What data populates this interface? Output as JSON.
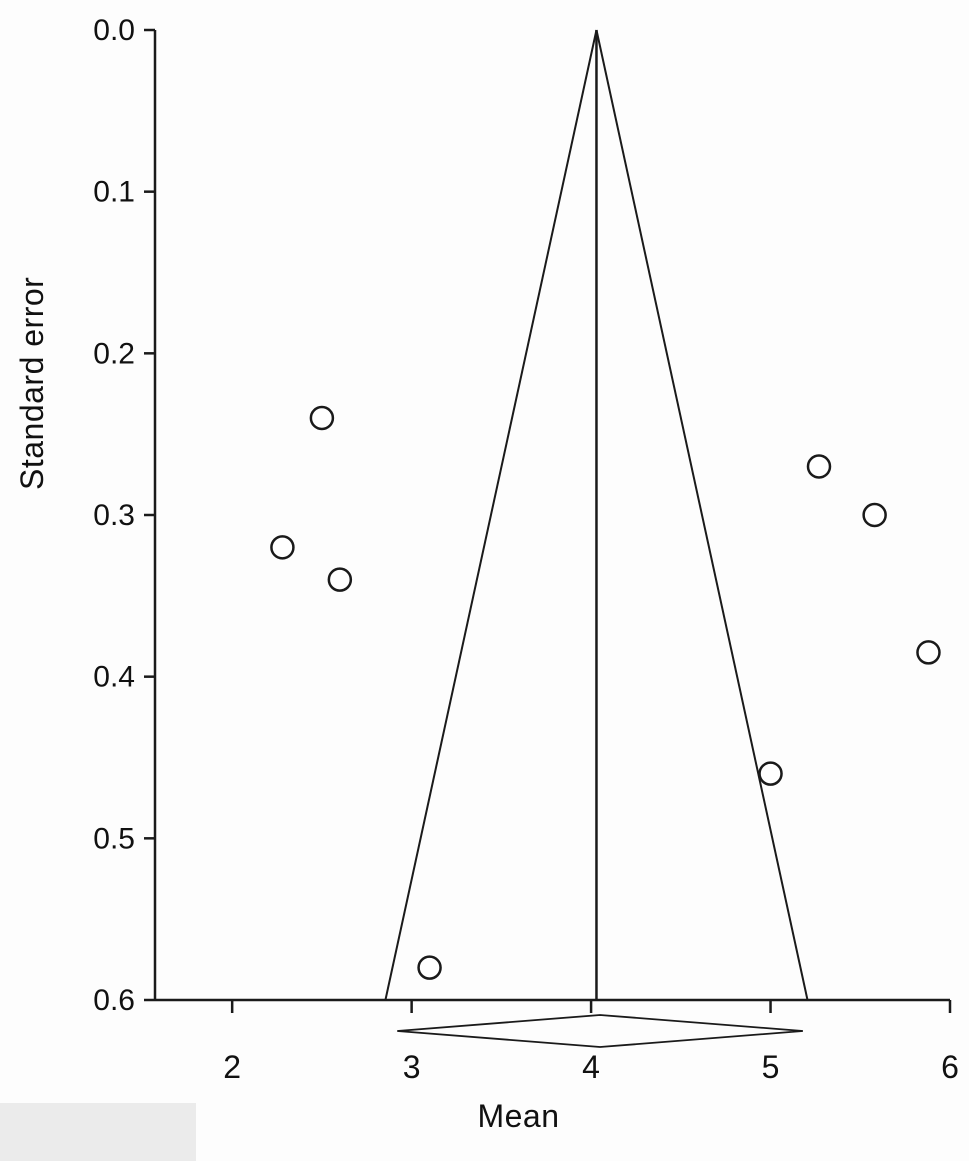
{
  "chart_data": {
    "type": "scatter",
    "subtype": "funnel-plot",
    "title": "",
    "xlabel": "Mean",
    "ylabel": "Standard error",
    "xlim": [
      1.57,
      6.0
    ],
    "ylim": [
      0.0,
      0.6
    ],
    "y_inverted": true,
    "grid": false,
    "legend": null,
    "xticks": [
      2,
      3,
      4,
      5,
      6
    ],
    "xtick_labels": [
      "2",
      "3",
      "4",
      "5",
      "6"
    ],
    "yticks": [
      0.0,
      0.1,
      0.2,
      0.3,
      0.4,
      0.5,
      0.6
    ],
    "ytick_labels": [
      "0.0",
      "0.1",
      "0.2",
      "0.3",
      "0.4",
      "0.5",
      "0.6"
    ],
    "points": [
      {
        "mean": 2.5,
        "se": 0.24
      },
      {
        "mean": 2.28,
        "se": 0.32
      },
      {
        "mean": 2.6,
        "se": 0.34
      },
      {
        "mean": 3.1,
        "se": 0.58
      },
      {
        "mean": 5.0,
        "se": 0.46
      },
      {
        "mean": 5.27,
        "se": 0.27
      },
      {
        "mean": 5.58,
        "se": 0.3
      },
      {
        "mean": 5.88,
        "se": 0.385
      }
    ],
    "pooled_mean": 4.03,
    "funnel": {
      "apex_x": 4.03,
      "apex_se": 0.0,
      "base_se": 0.6,
      "ci_multiplier": 1.96
    },
    "diamond": {
      "center": 4.05,
      "left": 2.92,
      "right": 5.18
    },
    "colors": {
      "line": "#1a1a1a",
      "marker_fill": "#ffffff",
      "marker_stroke": "#1a1a1a"
    }
  }
}
